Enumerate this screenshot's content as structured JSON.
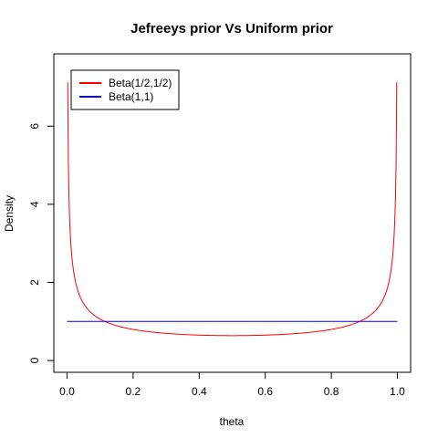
{
  "chart_data": {
    "type": "line",
    "title": "Jefreeys prior Vs Uniform prior",
    "xlabel": "theta",
    "ylabel": "Density",
    "xlim": [
      0,
      1
    ],
    "ylim": [
      0,
      7.55
    ],
    "xticks": [
      "0.0",
      "0.2",
      "0.4",
      "0.6",
      "0.8",
      "1.0"
    ],
    "yticks": [
      "0",
      "2",
      "4",
      "6"
    ],
    "grid": false,
    "legend_position": "top-left",
    "series": [
      {
        "name": "Beta(1/2,1/2)",
        "color": "#ff0000",
        "function": "beta(0.5,0.5) density",
        "x": [
          0.001,
          0.005,
          0.01,
          0.02,
          0.05,
          0.1,
          0.2,
          0.3,
          0.4,
          0.5,
          0.6,
          0.7,
          0.8,
          0.9,
          0.95,
          0.98,
          0.99,
          0.995,
          0.999
        ],
        "y": [
          10.07,
          4.51,
          3.2,
          2.27,
          1.46,
          1.06,
          0.8,
          0.69,
          0.65,
          0.64,
          0.65,
          0.69,
          0.8,
          1.06,
          1.46,
          2.27,
          3.2,
          4.51,
          10.07
        ]
      },
      {
        "name": "Beta(1,1)",
        "color": "#0000ff",
        "function": "uniform density",
        "x": [
          0,
          1
        ],
        "y": [
          1,
          1
        ]
      }
    ]
  }
}
